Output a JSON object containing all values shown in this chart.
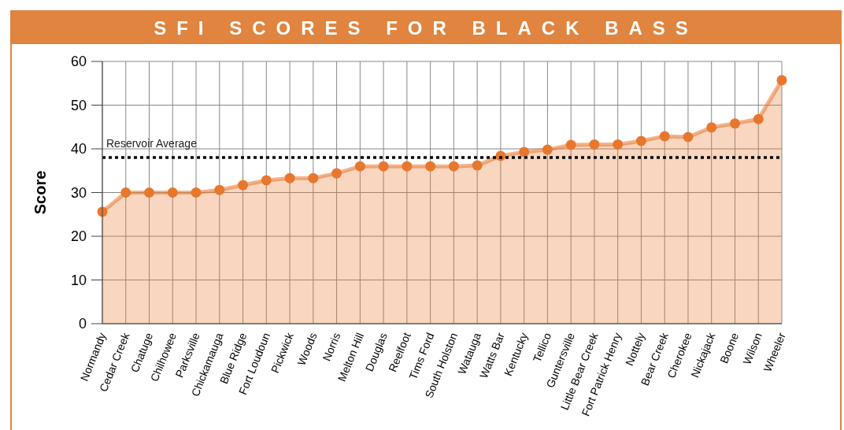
{
  "chart_data": {
    "type": "area",
    "title": "SFI SCORES FOR BLACK BASS",
    "ylabel": "Score",
    "categories": [
      "Normandy",
      "Cedar Creek",
      "Chatuge",
      "Chilhowee",
      "Parksville",
      "Chickamauga",
      "Blue Ridge",
      "Fort Loudoun",
      "Pickwick",
      "Woods",
      "Norris",
      "Melton Hill",
      "Douglas",
      "Reelfoot",
      "Tims Ford",
      "South Holston",
      "Watauga",
      "Watts Bar",
      "Kentucky",
      "Tellico",
      "Guntersville",
      "Little Bear Creek",
      "Fort Patrick Henry",
      "Nottely",
      "Bear Creek",
      "Cherokee",
      "Nickajack",
      "Boone",
      "Wilson",
      "Wheeler"
    ],
    "series": [
      {
        "color": "#e8772e",
        "values": [
          25.6,
          30,
          30,
          30,
          30,
          30.6,
          31.7,
          32.8,
          33.3,
          33.3,
          34.4,
          36,
          36,
          36,
          36,
          36,
          36.2,
          38.4,
          39.3,
          39.8,
          40.9,
          41,
          41,
          41.8,
          42.9,
          42.7,
          44.9,
          45.8,
          46.8,
          55.7
        ]
      }
    ],
    "ylim": [
      0,
      60
    ],
    "yticks": [
      0,
      10,
      20,
      30,
      40,
      50,
      60
    ],
    "grid": true,
    "marker": "circle",
    "ref_lines": [
      {
        "axis": "y",
        "value": 38,
        "label": "Reservoir Average",
        "color": "#000000",
        "line_style": "dotted"
      }
    ]
  }
}
